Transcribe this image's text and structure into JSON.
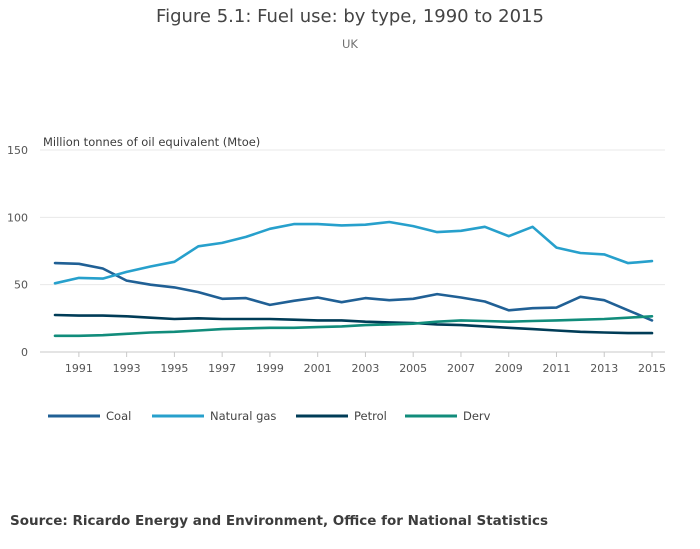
{
  "chart_data": {
    "type": "line",
    "title": "Figure 5.1: Fuel use: by type, 1990 to 2015",
    "subtitle": "UK",
    "ylabel": "Million tonnes of oil equivalent (Mtoe)",
    "xlabel": "",
    "ylim": [
      0,
      150
    ],
    "yticks": [
      0,
      50,
      100,
      150
    ],
    "x": [
      1990,
      1991,
      1992,
      1993,
      1994,
      1995,
      1996,
      1997,
      1998,
      1999,
      2000,
      2001,
      2002,
      2003,
      2004,
      2005,
      2006,
      2007,
      2008,
      2009,
      2010,
      2011,
      2012,
      2013,
      2014,
      2015
    ],
    "xticks": [
      "1991",
      "1993",
      "1995",
      "1997",
      "1999",
      "2001",
      "2003",
      "2005",
      "2007",
      "2009",
      "2011",
      "2013",
      "2015"
    ],
    "grid": true,
    "legend_position": "bottom",
    "series": [
      {
        "name": "Coal",
        "color": "#206095",
        "values": [
          66,
          65.5,
          62,
          53,
          50,
          48,
          44.5,
          39.5,
          40,
          35,
          38,
          40.5,
          37,
          40,
          38.5,
          39.5,
          43,
          40.5,
          37.5,
          31,
          32.5,
          33,
          41,
          38.5,
          31,
          23.5
        ]
      },
      {
        "name": "Natural gas",
        "color": "#27a0cc",
        "values": [
          51,
          55,
          54.5,
          59.5,
          63.5,
          67,
          78.5,
          81,
          85.5,
          91.5,
          95,
          95,
          94,
          94.5,
          96.5,
          93.5,
          89,
          90,
          93,
          86,
          93,
          77.5,
          73.5,
          72.5,
          66,
          67.5
        ]
      },
      {
        "name": "Petrol",
        "color": "#003c57",
        "values": [
          27.5,
          27,
          27,
          26.5,
          25.5,
          24.5,
          25,
          24.5,
          24.5,
          24.5,
          24,
          23.5,
          23.5,
          22.5,
          22,
          21.5,
          20.5,
          20,
          19,
          18,
          17,
          16,
          15,
          14.5,
          14,
          14
        ]
      },
      {
        "name": "Derv",
        "color": "#118c7b",
        "values": [
          12,
          12,
          12.5,
          13.5,
          14.5,
          15,
          16,
          17,
          17.5,
          18,
          18,
          18.5,
          19,
          20,
          20.5,
          21,
          22.5,
          23.5,
          23,
          22.5,
          23,
          23.5,
          24,
          24.5,
          25.5,
          26.5
        ]
      }
    ],
    "source": "Source: Ricardo Energy and Environment, Office for National Statistics"
  }
}
